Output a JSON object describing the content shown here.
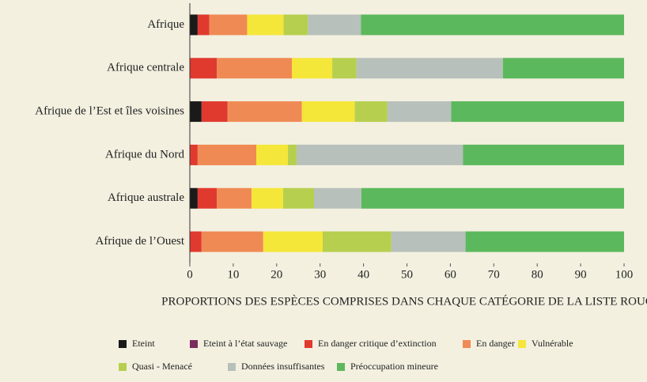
{
  "chart_data": {
    "type": "bar",
    "orientation": "horizontal",
    "stacked": true,
    "categories": [
      "Afrique",
      "Afrique centrale",
      "Afrique de l’Est et îles voisines",
      "Afrique du Nord",
      "Afrique australe",
      "Afrique de l’Ouest"
    ],
    "series": [
      {
        "name": "Eteint",
        "color": "#1a1a1a",
        "values": [
          1.8,
          0,
          2.7,
          0,
          1.8,
          0
        ]
      },
      {
        "name": "Eteint à l’état sauvage",
        "color": "#7b2d5e",
        "values": [
          0,
          0,
          0,
          0,
          0,
          0
        ]
      },
      {
        "name": "En danger critique d’extinction",
        "color": "#e03a2f",
        "values": [
          2.7,
          6.2,
          6.0,
          1.8,
          4.4,
          2.7
        ]
      },
      {
        "name": "En danger",
        "color": "#f08a55",
        "values": [
          8.7,
          17.3,
          17.1,
          13.5,
          8.0,
          14.2
        ]
      },
      {
        "name": "Vulnérable",
        "color": "#f5e63a",
        "values": [
          8.4,
          9.3,
          12.2,
          7.3,
          7.3,
          13.7
        ]
      },
      {
        "name": "Quasi - Menacé",
        "color": "#b6cf4e",
        "values": [
          5.6,
          5.6,
          7.5,
          2.0,
          7.1,
          15.8
        ]
      },
      {
        "name": "Données insuffisantes",
        "color": "#b7c0bb",
        "values": [
          12.2,
          33.7,
          14.7,
          38.3,
          10.9,
          17.1
        ]
      },
      {
        "name": "Préoccupation mineure",
        "color": "#5cb85c",
        "values": [
          60.6,
          27.9,
          39.8,
          37.1,
          60.5,
          36.5
        ]
      }
    ],
    "xlim": [
      0,
      100
    ],
    "xticks": [
      0,
      10,
      20,
      30,
      40,
      50,
      60,
      70,
      80,
      90,
      100
    ],
    "xlabel": "PROPORTIONS DES ESPÈCES COMPRISES DANS CHAQUE CATÉGORIE DE LA LISTE ROUGE",
    "legend": "bottom"
  }
}
